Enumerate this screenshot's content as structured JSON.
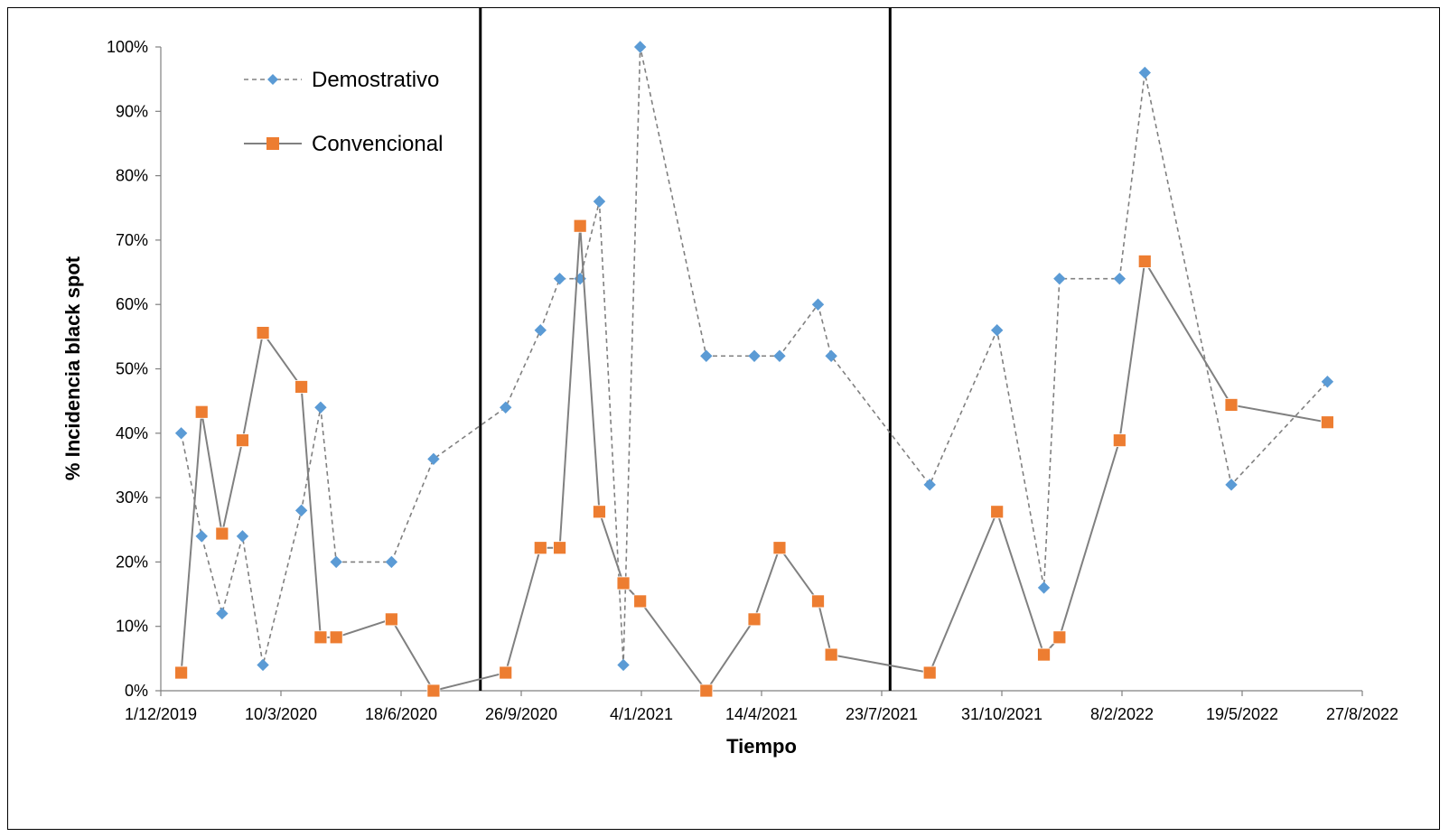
{
  "chart_data": {
    "type": "line",
    "xlabel": "Tiempo",
    "ylabel": "% Incidencia black spot",
    "x_axis": {
      "type": "date",
      "min": "2019-12-01",
      "max": "2022-08-27",
      "tick_labels": [
        "1/12/2019",
        "10/3/2020",
        "18/6/2020",
        "26/9/2020",
        "4/1/2021",
        "14/4/2021",
        "23/7/2021",
        "31/10/2021",
        "8/2/2022",
        "19/5/2022",
        "27/8/2022"
      ]
    },
    "y_axis": {
      "min": 0,
      "max": 100,
      "tick_labels": [
        "0%",
        "10%",
        "20%",
        "30%",
        "40%",
        "50%",
        "60%",
        "70%",
        "80%",
        "90%",
        "100%"
      ]
    },
    "vertical_reference_lines": [
      "2020-08-23",
      "2021-07-30"
    ],
    "legend_position": "top-left",
    "series": [
      {
        "name": "Demostrativo",
        "line_style": "dashed",
        "marker": "diamond",
        "marker_color": "#5B9BD5",
        "line_color": "#808080",
        "points": [
          [
            "2019-12-18",
            40
          ],
          [
            "2020-01-04",
            24
          ],
          [
            "2020-01-21",
            12
          ],
          [
            "2020-02-07",
            24
          ],
          [
            "2020-02-24",
            4
          ],
          [
            "2020-03-27",
            28
          ],
          [
            "2020-04-12",
            44
          ],
          [
            "2020-04-25",
            20
          ],
          [
            "2020-06-10",
            20
          ],
          [
            "2020-07-15",
            36
          ],
          [
            "2020-09-13",
            44
          ],
          [
            "2020-10-12",
            56
          ],
          [
            "2020-10-28",
            64
          ],
          [
            "2020-11-14",
            64
          ],
          [
            "2020-11-30",
            76
          ],
          [
            "2020-12-20",
            4
          ],
          [
            "2021-01-03",
            100
          ],
          [
            "2021-02-27",
            52
          ],
          [
            "2021-04-08",
            52
          ],
          [
            "2021-04-29",
            52
          ],
          [
            "2021-05-31",
            60
          ],
          [
            "2021-06-11",
            52
          ],
          [
            "2021-09-01",
            32
          ],
          [
            "2021-10-27",
            56
          ],
          [
            "2021-12-05",
            16
          ],
          [
            "2021-12-18",
            64
          ],
          [
            "2022-02-06",
            64
          ],
          [
            "2022-02-27",
            96
          ],
          [
            "2022-05-10",
            32
          ],
          [
            "2022-07-29",
            48
          ]
        ]
      },
      {
        "name": "Convencional",
        "line_style": "solid",
        "marker": "square",
        "marker_color": "#ED7D31",
        "line_color": "#808080",
        "points": [
          [
            "2019-12-18",
            2.8
          ],
          [
            "2020-01-04",
            43.3
          ],
          [
            "2020-01-21",
            24.4
          ],
          [
            "2020-02-07",
            38.9
          ],
          [
            "2020-02-24",
            55.6
          ],
          [
            "2020-03-27",
            47.2
          ],
          [
            "2020-04-12",
            8.3
          ],
          [
            "2020-04-25",
            8.3
          ],
          [
            "2020-06-10",
            11.1
          ],
          [
            "2020-07-15",
            0
          ],
          [
            "2020-09-13",
            2.8
          ],
          [
            "2020-10-12",
            22.2
          ],
          [
            "2020-10-28",
            22.2
          ],
          [
            "2020-11-14",
            72.2
          ],
          [
            "2020-11-30",
            27.8
          ],
          [
            "2020-12-20",
            16.7
          ],
          [
            "2021-01-03",
            13.9
          ],
          [
            "2021-02-27",
            0
          ],
          [
            "2021-04-08",
            11.1
          ],
          [
            "2021-04-29",
            22.2
          ],
          [
            "2021-05-31",
            13.9
          ],
          [
            "2021-06-11",
            5.6
          ],
          [
            "2021-09-01",
            2.8
          ],
          [
            "2021-10-27",
            27.8
          ],
          [
            "2021-12-05",
            5.6
          ],
          [
            "2021-12-18",
            8.3
          ],
          [
            "2022-02-06",
            38.9
          ],
          [
            "2022-02-27",
            66.7
          ],
          [
            "2022-05-10",
            44.4
          ],
          [
            "2022-07-29",
            41.7
          ]
        ]
      }
    ]
  }
}
